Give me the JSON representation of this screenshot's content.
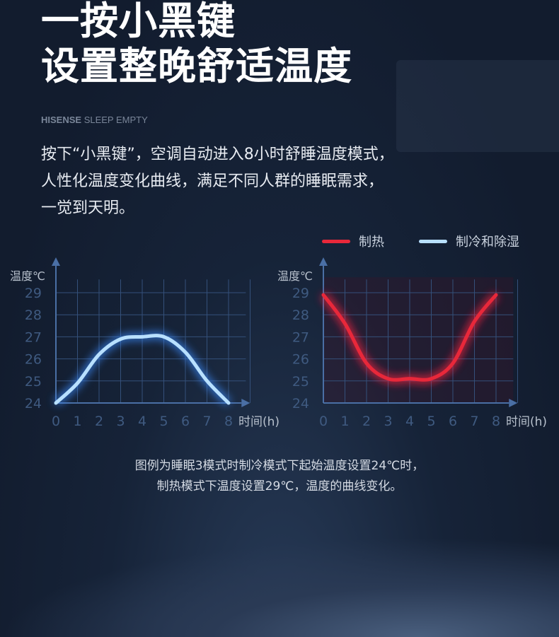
{
  "headline": {
    "line1": "一按小黑键",
    "line2": "设置整晚舒适温度"
  },
  "brand": {
    "bold": "HISENSE",
    "rest": " SLEEP EMPTY"
  },
  "description": [
    "按下“小黑键”，空调自动进入8小时舒睡温度模式，",
    "人性化温度变化曲线，满足不同人群的睡眠需求，",
    "一觉到天明。"
  ],
  "legend": [
    {
      "label": "制热",
      "color": "#e8283a"
    },
    {
      "label": "制冷和除湿",
      "color": "#b8e0ff"
    }
  ],
  "note": [
    "图例为睡眠3模式时制冷模式下起始温度设置24℃时，",
    "制热模式下温度设置29℃，温度的曲线变化。"
  ],
  "chart_data": [
    {
      "type": "line",
      "ylabel": "温度℃",
      "xlabel": "时间(h)",
      "x": [
        0,
        1,
        2,
        3,
        4,
        5,
        6,
        7,
        8
      ],
      "yticks": [
        24,
        25,
        26,
        27,
        28,
        29
      ],
      "xlim": [
        0,
        8
      ],
      "ylim": [
        24,
        29
      ],
      "grid": true,
      "series": [
        {
          "name": "制冷和除湿",
          "color": "#b8e0ff",
          "values": [
            24,
            24.9,
            26.2,
            26.9,
            27,
            27,
            26.3,
            25,
            24
          ]
        }
      ]
    },
    {
      "type": "line",
      "ylabel": "温度℃",
      "xlabel": "时间(h)",
      "x": [
        0,
        1,
        2,
        3,
        4,
        5,
        6,
        7,
        8
      ],
      "yticks": [
        24,
        25,
        26,
        27,
        28,
        29
      ],
      "xlim": [
        0,
        8
      ],
      "ylim": [
        24,
        29
      ],
      "grid": true,
      "series": [
        {
          "name": "制热",
          "color": "#e8283a",
          "values": [
            28.9,
            27.6,
            25.8,
            25.1,
            25.1,
            25.1,
            25.8,
            27.7,
            28.9
          ]
        }
      ]
    }
  ]
}
